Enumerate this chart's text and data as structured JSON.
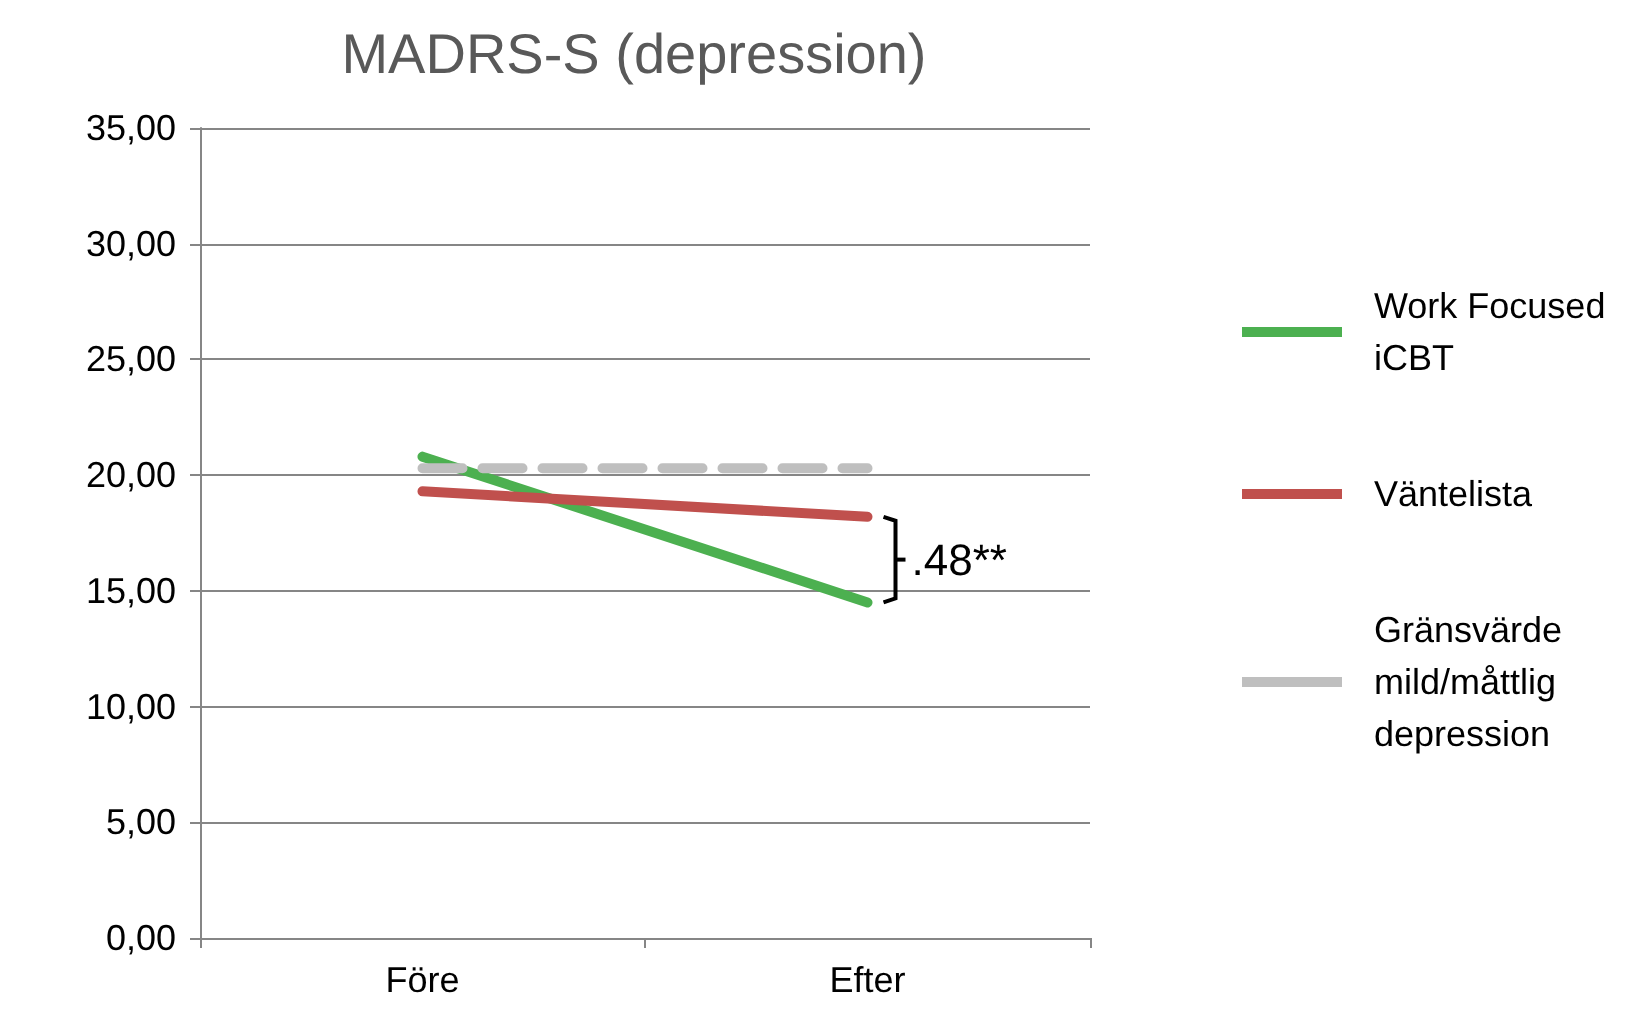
{
  "chart_data": {
    "type": "line",
    "title": "MADRS-S (depression)",
    "categories": [
      "Före",
      "Efter"
    ],
    "series": [
      {
        "name": "Work Focused iCBT",
        "color": "#4cb050",
        "values": [
          20.8,
          14.5
        ]
      },
      {
        "name": "Väntelista",
        "color": "#c0504d",
        "values": [
          19.3,
          18.2
        ]
      },
      {
        "name": "Gränsvärde mild/måttlig depression",
        "color": "#bfbfbf",
        "values": [
          20.3,
          20.3
        ],
        "line_style": "dashed"
      }
    ],
    "ylim": [
      0,
      35
    ],
    "yticks": [
      {
        "value": 0,
        "label": "0,00"
      },
      {
        "value": 5,
        "label": "5,00"
      },
      {
        "value": 10,
        "label": "10,00"
      },
      {
        "value": 15,
        "label": "15,00"
      },
      {
        "value": 20,
        "label": "20,00"
      },
      {
        "value": 25,
        "label": "25,00"
      },
      {
        "value": 30,
        "label": "30,00"
      },
      {
        "value": 35,
        "label": "35,00"
      }
    ],
    "grid": "y",
    "legend": "right",
    "marker": "none",
    "line_style": "solid",
    "annotations": [
      ".48**"
    ]
  }
}
